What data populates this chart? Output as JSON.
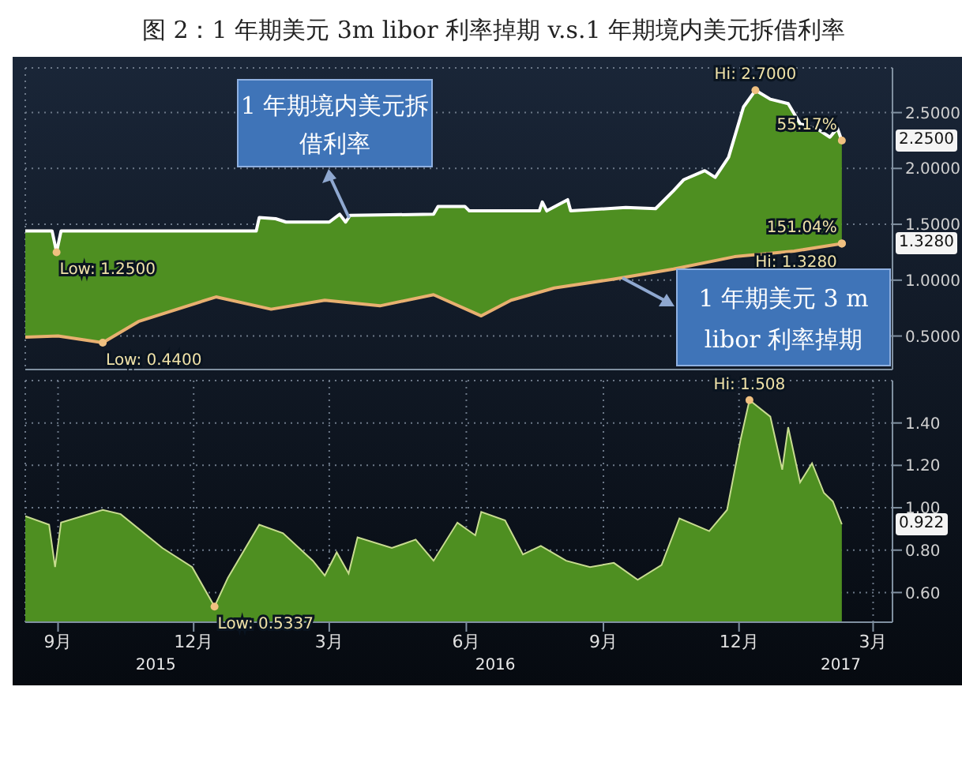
{
  "chart_data": [
    {
      "type": "line",
      "title": "图 2：1 年期美元 3m libor 利率掉期 v.s.1 年期境内美元拆借利率",
      "xlim": [
        "2015-08-10",
        "2017-03-14"
      ],
      "xticks": [
        {
          "value": "2015-09-01",
          "label": null
        },
        {
          "value": "2015-12-01",
          "label": null
        },
        {
          "value": "2016-03-01",
          "label": null
        },
        {
          "value": "2016-06-01",
          "label": null
        },
        {
          "value": "2016-09-01",
          "label": null
        },
        {
          "value": "2016-12-01",
          "label": null
        },
        {
          "value": "2017-03-01",
          "label": null
        }
      ],
      "ylim": [
        0.2,
        2.9
      ],
      "yticks": [
        {
          "value": 0.5,
          "label": "0.5000"
        },
        {
          "value": 1,
          "label": "1.0000"
        },
        {
          "value": 1.5,
          "label": "1.5000"
        },
        {
          "value": 2,
          "label": "2.0000"
        },
        {
          "value": 2.5,
          "label": "2.5000"
        }
      ],
      "grid": true,
      "tick_labels": "y",
      "series": [
        {
          "name": "1 年期境内美元拆借利率",
          "color": "#ffffff",
          "x": [
            "2015-08-10",
            "2015-08-28",
            "2015-08-31",
            "2015-09-03",
            "2015-10-01",
            "2015-12-01",
            "2016-01-12",
            "2016-01-14",
            "2016-01-25",
            "2016-02-01",
            "2016-03-01",
            "2016-03-08",
            "2016-03-12",
            "2016-03-15",
            "2016-05-10",
            "2016-05-13",
            "2016-05-31",
            "2016-06-03",
            "2016-07-20",
            "2016-07-22",
            "2016-07-25",
            "2016-08-08",
            "2016-08-10",
            "2016-09-16",
            "2016-10-06",
            "2016-10-18",
            "2016-10-25",
            "2016-11-08",
            "2016-11-15",
            "2016-11-24",
            "2016-12-04",
            "2016-12-12",
            "2016-12-22",
            "2017-01-03",
            "2017-01-11",
            "2017-01-23",
            "2017-01-31",
            "2017-02-05",
            "2017-02-08"
          ],
          "values": [
            1.44,
            1.44,
            1.25,
            1.44,
            1.44,
            1.44,
            1.44,
            1.56,
            1.55,
            1.52,
            1.52,
            1.59,
            1.52,
            1.58,
            1.59,
            1.66,
            1.66,
            1.62,
            1.62,
            1.7,
            1.62,
            1.72,
            1.62,
            1.65,
            1.64,
            1.8,
            1.9,
            1.98,
            1.92,
            2.1,
            2.55,
            2.7,
            2.62,
            2.58,
            2.4,
            2.35,
            2.28,
            2.36,
            2.25
          ]
        },
        {
          "name": "1 年期美元 3 m libor 利率掉期",
          "color": "#e8b070",
          "x": [
            "2015-08-10",
            "2015-09-01",
            "2015-10-01",
            "2015-10-25",
            "2015-12-16",
            "2016-01-22",
            "2016-02-27",
            "2016-04-04",
            "2016-05-10",
            "2016-06-11",
            "2016-07-01",
            "2016-07-30",
            "2016-09-08",
            "2016-10-18",
            "2016-11-28",
            "2017-01-07",
            "2017-02-08"
          ],
          "values": [
            0.49,
            0.5,
            0.44,
            0.63,
            0.85,
            0.74,
            0.82,
            0.77,
            0.87,
            0.68,
            0.82,
            0.93,
            1.01,
            1.1,
            1.21,
            1.26,
            1.328
          ]
        }
      ],
      "annotations": [
        {
          "text": "Low: 1.2500",
          "x": "2015-08-31",
          "y": 1.25
        },
        {
          "text": "Hi: 2.7000",
          "x": "2016-12-12",
          "y": 2.7
        },
        {
          "text": "55.17%",
          "x": "2017-02-08",
          "y": 2.25
        },
        {
          "text": "2.2500",
          "y": 2.25
        },
        {
          "text": "Low: 0.4400",
          "x": "2015-10-01",
          "y": 0.44
        },
        {
          "text": "Hi: 1.3280",
          "x": "2017-02-08",
          "y": 1.328
        },
        {
          "text": "151.04%",
          "x": "2017-02-08",
          "y": 1.328
        },
        {
          "text": "1.3280",
          "y": 1.328
        }
      ]
    },
    {
      "type": "area",
      "xlim": [
        "2015-08-10",
        "2017-03-14"
      ],
      "xticks": [
        {
          "value": "2015-09-01",
          "label": "9月"
        },
        {
          "value": "2015-12-01",
          "label": "12月"
        },
        {
          "value": "2016-03-01",
          "label": "3月"
        },
        {
          "value": "2016-06-01",
          "label": "6月"
        },
        {
          "value": "2016-09-01",
          "label": "9月"
        },
        {
          "value": "2016-12-01",
          "label": "12月"
        },
        {
          "value": "2017-03-01",
          "label": "3月"
        }
      ],
      "ylim": [
        0.46,
        1.6
      ],
      "yticks": [
        {
          "value": 0.6,
          "label": "0.60"
        },
        {
          "value": 0.8,
          "label": "0.80"
        },
        {
          "value": 1,
          "label": "1.00"
        },
        {
          "value": 1.2,
          "label": "1.20"
        },
        {
          "value": 1.4,
          "label": "1.40"
        }
      ],
      "grid": true,
      "series": [
        {
          "color": "#4e8f21",
          "x": [
            "2015-08-10",
            "2015-08-26",
            "2015-08-30",
            "2015-09-03",
            "2015-10-01",
            "2015-10-13",
            "2015-11-10",
            "2015-11-30",
            "2015-12-15",
            "2015-12-24",
            "2016-01-14",
            "2016-01-30",
            "2016-02-19",
            "2016-02-27",
            "2016-03-06",
            "2016-03-14",
            "2016-03-20",
            "2016-04-12",
            "2016-04-28",
            "2016-05-10",
            "2016-05-26",
            "2016-06-07",
            "2016-06-11",
            "2016-06-27",
            "2016-07-09",
            "2016-07-21",
            "2016-08-07",
            "2016-08-23",
            "2016-09-08",
            "2016-09-24",
            "2016-10-10",
            "2016-10-22",
            "2016-11-11",
            "2016-11-23",
            "2016-12-02",
            "2016-12-08",
            "2016-12-22",
            "2016-12-30",
            "2017-01-03",
            "2017-01-11",
            "2017-01-19",
            "2017-01-27",
            "2017-02-02",
            "2017-02-08"
          ],
          "values": [
            0.96,
            0.92,
            0.72,
            0.93,
            0.99,
            0.97,
            0.81,
            0.72,
            0.5337,
            0.67,
            0.92,
            0.88,
            0.75,
            0.68,
            0.79,
            0.69,
            0.86,
            0.81,
            0.85,
            0.75,
            0.93,
            0.87,
            0.98,
            0.94,
            0.78,
            0.82,
            0.75,
            0.72,
            0.74,
            0.66,
            0.73,
            0.95,
            0.89,
            0.99,
            1.32,
            1.508,
            1.43,
            1.18,
            1.38,
            1.12,
            1.21,
            1.07,
            1.03,
            0.922
          ]
        }
      ],
      "annotations": [
        {
          "text": "Hi: 1.508",
          "x": "2016-12-08",
          "y": 1.508
        },
        {
          "text": "Low: 0.5337",
          "x": "2015-12-15",
          "y": 0.5337
        },
        {
          "text": "0.922",
          "y": 0.922
        },
        "2015",
        "2016",
        "2017"
      ]
    }
  ]
}
